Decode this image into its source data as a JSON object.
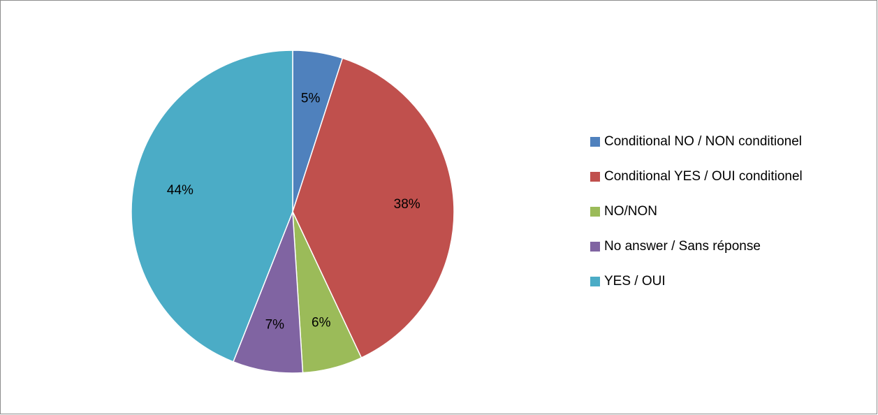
{
  "chart_data": {
    "type": "pie",
    "title": "",
    "slices": [
      {
        "label": "Conditional NO / NON conditionel",
        "value": 5,
        "display": "5%",
        "color": "#4F81BD"
      },
      {
        "label": "Conditional YES / OUI conditionel",
        "value": 38,
        "display": "38%",
        "color": "#C0504D"
      },
      {
        "label": "NO/NON",
        "value": 6,
        "display": "6%",
        "color": "#9BBB59"
      },
      {
        "label": "No answer / Sans réponse",
        "value": 7,
        "display": "7%",
        "color": "#8064A2"
      },
      {
        "label": "YES / OUI",
        "value": 44,
        "display": "44%",
        "color": "#4BACC6"
      }
    ],
    "start": "12 o'clock",
    "direction": "clockwise",
    "legend_position": "right"
  }
}
